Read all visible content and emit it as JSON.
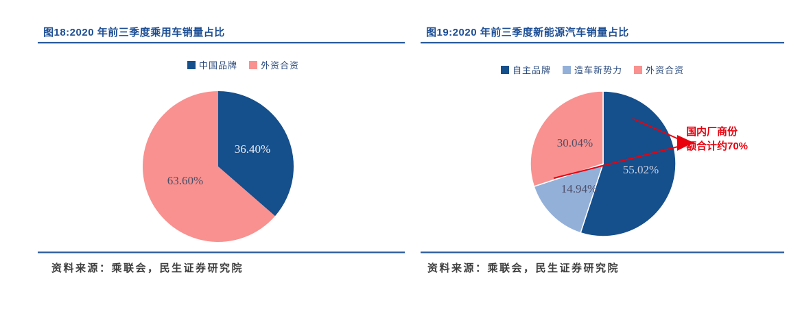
{
  "page": {
    "background": "#FFFFFF"
  },
  "styles": {
    "title_color": "#1C4E94",
    "rule_color": "#2E5E9E",
    "legend_text_color": "#2B4B7E",
    "source_text_color": "#3F3F3F",
    "annotation_red": "#E8000D",
    "dark_blue": "#154F8C",
    "light_blue": "#93B0D9",
    "pink": "#F8918F"
  },
  "figures": [
    {
      "title": "图18:2020 年前三季度乘用车销量占比",
      "source": "资料来源：乘联会，民生证券研究院"
    },
    {
      "title": "图19:2020 年前三季度新能源汽车销量占比",
      "source": "资料来源：乘联会，民生证券研究院",
      "annotation": {
        "line1": "国内厂商份",
        "line2": "额合计约70%",
        "full_text": "国内厂商份额合计约70%",
        "color": "#E8000D"
      }
    }
  ],
  "chart_data": [
    {
      "type": "pie",
      "title": "2020 年前三季度乘用车销量占比",
      "legend_position": "top",
      "start_angle": "12-o-clock",
      "direction": "clockwise",
      "slices": [
        {
          "name": "中国品牌",
          "value": 36.4,
          "label": "36.40%",
          "color": "#154F8C",
          "label_color": "#ECEDF4"
        },
        {
          "name": "外资合资",
          "value": 63.6,
          "label": "63.60%",
          "color": "#F8918F",
          "label_color": "#4E4E66"
        }
      ]
    },
    {
      "type": "pie",
      "title": "2020 年前三季度新能源汽车销量占比",
      "legend_position": "top",
      "start_angle": "12-o-clock",
      "direction": "clockwise",
      "slices": [
        {
          "name": "自主品牌",
          "value": 55.02,
          "label": "55.02%",
          "color": "#154F8C",
          "label_color": "#CDD0DD"
        },
        {
          "name": "造车新势力",
          "value": 14.94,
          "label": "14.94%",
          "color": "#93B0D9",
          "label_color": "#4E4E66"
        },
        {
          "name": "外资合资",
          "value": 30.04,
          "label": "30.04%",
          "color": "#F8918F",
          "label_color": "#4E4E66"
        }
      ]
    }
  ]
}
